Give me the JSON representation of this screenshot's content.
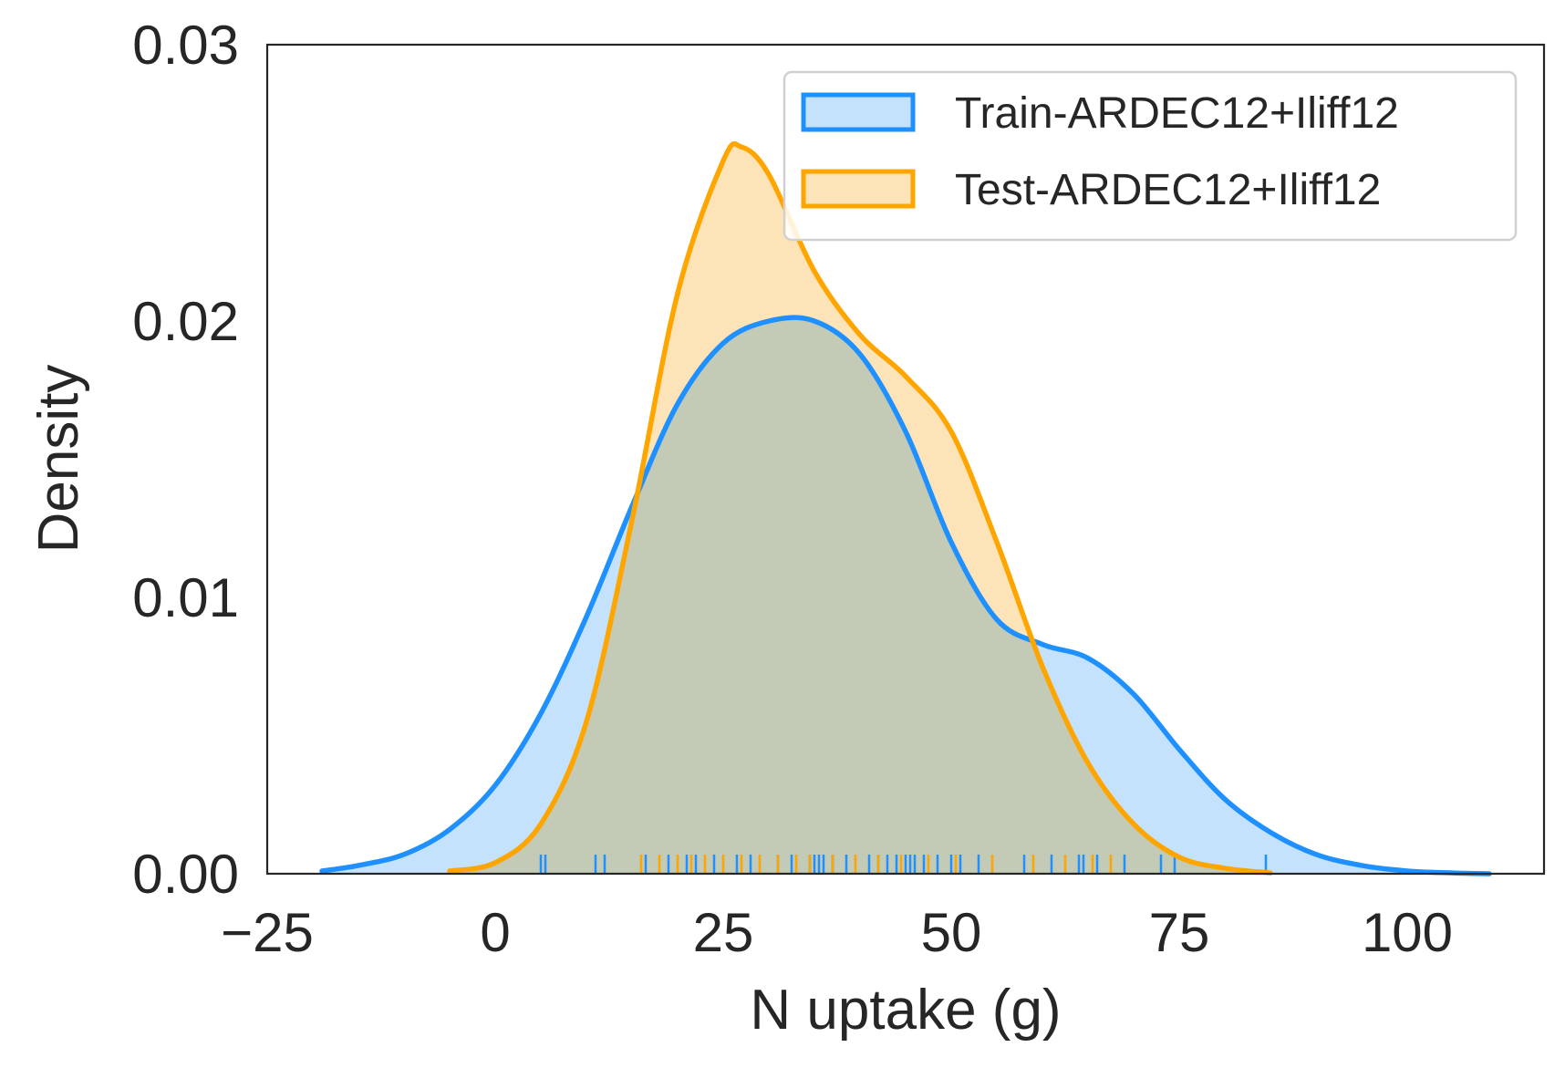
{
  "chart_data": {
    "type": "area",
    "xlabel": "N uptake (g)",
    "ylabel": "Density",
    "xlim": [
      -25,
      115
    ],
    "ylim": [
      0,
      0.03
    ],
    "xticks": [
      -25,
      0,
      25,
      50,
      75,
      100
    ],
    "xtick_labels": [
      "−25",
      "0",
      "25",
      "50",
      "75",
      "100"
    ],
    "yticks": [
      0,
      0.01,
      0.02,
      0.03
    ],
    "ytick_labels": [
      "0.00",
      "0.01",
      "0.02",
      "0.03"
    ],
    "grid": false,
    "legend_position": "top-right",
    "series": [
      {
        "name": "Train-ARDEC12+Iliff12",
        "color": "#1E90FF",
        "fill": "#C5E2FC",
        "x": [
          -19,
          -15,
          -10,
          -5,
          0,
          5,
          10,
          15,
          20,
          25,
          30,
          35,
          40,
          45,
          50,
          55,
          60,
          65,
          70,
          75,
          80,
          85,
          90,
          95,
          100,
          105,
          109
        ],
        "y": [
          0.0001,
          0.0003,
          0.0007,
          0.0016,
          0.0032,
          0.0058,
          0.0093,
          0.0133,
          0.017,
          0.0192,
          0.02,
          0.02,
          0.0188,
          0.016,
          0.012,
          0.0092,
          0.0083,
          0.0078,
          0.0065,
          0.0045,
          0.0027,
          0.0015,
          0.0007,
          0.0003,
          0.0001,
          3e-05,
          0.0
        ]
      },
      {
        "name": "Test-ARDEC12+Iliff12",
        "color": "#FFA500",
        "fill": "#FDE4B8",
        "x": [
          -5,
          0,
          5,
          10,
          15,
          20,
          25,
          27,
          30,
          35,
          40,
          45,
          50,
          55,
          60,
          65,
          70,
          75,
          80,
          85
        ],
        "y": [
          0.0001,
          0.0004,
          0.0018,
          0.0055,
          0.0128,
          0.021,
          0.0258,
          0.0263,
          0.0253,
          0.0218,
          0.0195,
          0.018,
          0.016,
          0.012,
          0.0075,
          0.004,
          0.0018,
          0.0006,
          0.0002,
          3e-05
        ]
      }
    ],
    "rug": {
      "train": [
        5,
        5.5,
        11,
        12,
        16.5,
        19,
        21,
        22,
        24,
        26.5,
        28,
        31,
        32.5,
        34.5,
        35,
        35.5,
        36,
        37,
        38.5,
        41,
        42,
        43,
        44,
        45,
        45.5,
        46,
        47,
        48.5,
        50,
        51,
        53,
        58,
        61,
        64,
        64.5,
        66,
        69,
        73,
        74.5,
        84.5
      ],
      "test": [
        16,
        18,
        20,
        21.5,
        23,
        25,
        27,
        29,
        31,
        33,
        34.5,
        37,
        39.5,
        42,
        44.5,
        47.5,
        50.5,
        54.5,
        59,
        62.5,
        65.5,
        67.5
      ]
    }
  }
}
